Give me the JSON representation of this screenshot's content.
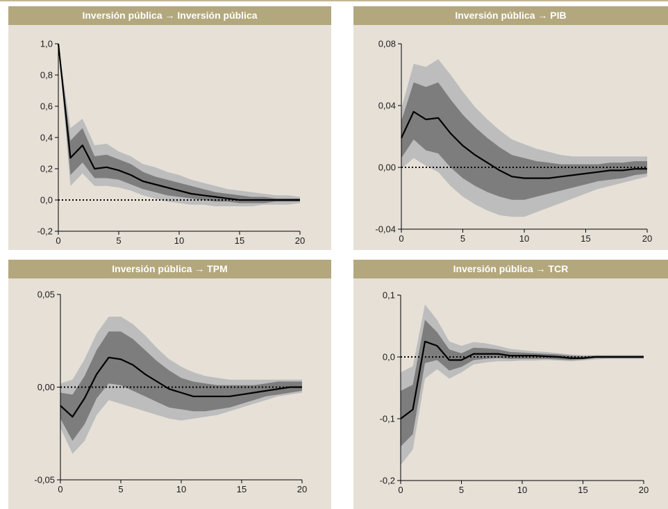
{
  "colors": {
    "header_bg": "#b3a77d",
    "panel_bg": "#e6e0d7",
    "band_outer": "#bdbdbd",
    "band_inner": "#7d7d7d",
    "line": "#000000"
  },
  "chart_data": [
    {
      "type": "line",
      "title": "Inversión pública → Inversión pública",
      "x": [
        0,
        1,
        2,
        3,
        4,
        5,
        6,
        7,
        8,
        9,
        10,
        11,
        12,
        13,
        14,
        15,
        16,
        17,
        18,
        19,
        20
      ],
      "xticks": [
        0,
        5,
        10,
        15,
        20
      ],
      "xtick_labels": [
        "0",
        "5",
        "10",
        "15",
        "20"
      ],
      "ylim": [
        -0.2,
        1.0
      ],
      "yticks": [
        -0.2,
        0.0,
        0.2,
        0.4,
        0.6,
        0.8,
        1.0
      ],
      "ytick_labels": [
        "-0,2",
        "0,0",
        "0,2",
        "0,4",
        "0,6",
        "0,8",
        "1,0"
      ],
      "zero_line": "dotted",
      "series": [
        {
          "role": "point_estimate",
          "values": [
            1.0,
            0.27,
            0.35,
            0.2,
            0.21,
            0.19,
            0.16,
            0.12,
            0.1,
            0.08,
            0.06,
            0.04,
            0.03,
            0.02,
            0.01,
            0.0,
            0.0,
            0.0,
            0.0,
            0.0,
            0.0
          ]
        },
        {
          "role": "inner_band_lower",
          "values": [
            1.0,
            0.16,
            0.24,
            0.14,
            0.14,
            0.13,
            0.1,
            0.07,
            0.05,
            0.03,
            0.02,
            0.01,
            0.0,
            -0.01,
            -0.01,
            -0.02,
            -0.02,
            -0.02,
            -0.01,
            -0.01,
            -0.01
          ]
        },
        {
          "role": "inner_band_upper",
          "values": [
            1.0,
            0.38,
            0.46,
            0.28,
            0.29,
            0.26,
            0.23,
            0.18,
            0.15,
            0.13,
            0.11,
            0.09,
            0.07,
            0.05,
            0.04,
            0.03,
            0.02,
            0.02,
            0.01,
            0.01,
            0.01
          ]
        },
        {
          "role": "outer_band_lower",
          "values": [
            1.0,
            0.09,
            0.17,
            0.09,
            0.09,
            0.08,
            0.06,
            0.03,
            0.01,
            -0.01,
            -0.02,
            -0.03,
            -0.03,
            -0.04,
            -0.04,
            -0.04,
            -0.04,
            -0.03,
            -0.03,
            -0.03,
            -0.02
          ]
        },
        {
          "role": "outer_band_upper",
          "values": [
            1.0,
            0.46,
            0.52,
            0.35,
            0.36,
            0.31,
            0.28,
            0.23,
            0.21,
            0.18,
            0.16,
            0.13,
            0.11,
            0.09,
            0.07,
            0.06,
            0.05,
            0.04,
            0.03,
            0.03,
            0.02
          ]
        }
      ]
    },
    {
      "type": "line",
      "title": "Inversión pública → PIB",
      "x": [
        0,
        1,
        2,
        3,
        4,
        5,
        6,
        7,
        8,
        9,
        10,
        11,
        12,
        13,
        14,
        15,
        16,
        17,
        18,
        19,
        20
      ],
      "xticks": [
        0,
        5,
        10,
        15,
        20
      ],
      "xtick_labels": [
        "0",
        "5",
        "10",
        "15",
        "20"
      ],
      "ylim": [
        -0.04,
        0.08
      ],
      "yticks": [
        -0.04,
        0.0,
        0.04,
        0.08
      ],
      "ytick_labels": [
        "-0,04",
        "0,00",
        "0,04",
        "0,08"
      ],
      "zero_line": "dotted",
      "series": [
        {
          "role": "point_estimate",
          "values": [
            0.019,
            0.036,
            0.031,
            0.032,
            0.022,
            0.014,
            0.008,
            0.003,
            -0.002,
            -0.006,
            -0.007,
            -0.007,
            -0.007,
            -0.006,
            -0.005,
            -0.004,
            -0.003,
            -0.002,
            -0.002,
            -0.001,
            -0.001
          ]
        },
        {
          "role": "inner_band_lower",
          "values": [
            0.006,
            0.018,
            0.011,
            0.009,
            0.0,
            -0.007,
            -0.012,
            -0.016,
            -0.019,
            -0.021,
            -0.021,
            -0.019,
            -0.017,
            -0.015,
            -0.013,
            -0.011,
            -0.009,
            -0.008,
            -0.007,
            -0.005,
            -0.004
          ]
        },
        {
          "role": "inner_band_upper",
          "values": [
            0.03,
            0.055,
            0.052,
            0.055,
            0.044,
            0.034,
            0.026,
            0.019,
            0.013,
            0.008,
            0.006,
            0.004,
            0.003,
            0.002,
            0.002,
            0.002,
            0.002,
            0.003,
            0.003,
            0.004,
            0.004
          ]
        },
        {
          "role": "outer_band_lower",
          "values": [
            -0.001,
            0.006,
            0.001,
            -0.003,
            -0.012,
            -0.019,
            -0.024,
            -0.028,
            -0.031,
            -0.032,
            -0.032,
            -0.029,
            -0.026,
            -0.023,
            -0.02,
            -0.017,
            -0.014,
            -0.012,
            -0.01,
            -0.008,
            -0.006
          ]
        },
        {
          "role": "outer_band_upper",
          "values": [
            0.038,
            0.067,
            0.065,
            0.07,
            0.06,
            0.049,
            0.039,
            0.031,
            0.024,
            0.018,
            0.015,
            0.012,
            0.01,
            0.008,
            0.007,
            0.007,
            0.007,
            0.007,
            0.007,
            0.007,
            0.007
          ]
        }
      ]
    },
    {
      "type": "line",
      "title": "Inversión pública → TPM",
      "x": [
        0,
        1,
        2,
        3,
        4,
        5,
        6,
        7,
        8,
        9,
        10,
        11,
        12,
        13,
        14,
        15,
        16,
        17,
        18,
        19,
        20
      ],
      "xticks": [
        0,
        5,
        10,
        15,
        20
      ],
      "xtick_labels": [
        "0",
        "5",
        "10",
        "15",
        "20"
      ],
      "ylim": [
        -0.05,
        0.05
      ],
      "yticks": [
        -0.05,
        0.0,
        0.05
      ],
      "ytick_labels": [
        "-0,05",
        "0,00",
        "0,05"
      ],
      "zero_line": "dotted",
      "series": [
        {
          "role": "point_estimate",
          "values": [
            -0.01,
            -0.016,
            -0.006,
            0.007,
            0.016,
            0.015,
            0.012,
            0.007,
            0.003,
            -0.001,
            -0.003,
            -0.005,
            -0.005,
            -0.005,
            -0.005,
            -0.004,
            -0.003,
            -0.002,
            -0.001,
            0.0,
            0.0
          ]
        },
        {
          "role": "inner_band_lower",
          "values": [
            -0.017,
            -0.029,
            -0.02,
            -0.006,
            0.002,
            0.001,
            -0.002,
            -0.005,
            -0.008,
            -0.011,
            -0.012,
            -0.013,
            -0.013,
            -0.012,
            -0.011,
            -0.009,
            -0.007,
            -0.005,
            -0.004,
            -0.003,
            -0.002
          ]
        },
        {
          "role": "inner_band_upper",
          "values": [
            -0.003,
            -0.004,
            0.006,
            0.02,
            0.03,
            0.03,
            0.026,
            0.02,
            0.014,
            0.009,
            0.005,
            0.003,
            0.002,
            0.001,
            0.001,
            0.001,
            0.001,
            0.002,
            0.003,
            0.003,
            0.003
          ]
        },
        {
          "role": "outer_band_lower",
          "values": [
            -0.022,
            -0.036,
            -0.029,
            -0.015,
            -0.007,
            -0.009,
            -0.011,
            -0.013,
            -0.015,
            -0.017,
            -0.018,
            -0.017,
            -0.016,
            -0.015,
            -0.013,
            -0.011,
            -0.009,
            -0.007,
            -0.005,
            -0.004,
            -0.003
          ]
        },
        {
          "role": "outer_band_upper",
          "values": [
            0.002,
            0.004,
            0.015,
            0.029,
            0.038,
            0.038,
            0.034,
            0.028,
            0.021,
            0.015,
            0.011,
            0.008,
            0.006,
            0.005,
            0.004,
            0.004,
            0.004,
            0.004,
            0.004,
            0.004,
            0.004
          ]
        }
      ]
    },
    {
      "type": "line",
      "title": "Inversión pública → TCR",
      "x": [
        0,
        1,
        2,
        3,
        4,
        5,
        6,
        7,
        8,
        9,
        10,
        11,
        12,
        13,
        14,
        15,
        16,
        17,
        18,
        19,
        20
      ],
      "xticks": [
        0,
        5,
        10,
        15,
        20
      ],
      "xtick_labels": [
        "0",
        "5",
        "10",
        "15",
        "20"
      ],
      "ylim": [
        -0.2,
        0.1
      ],
      "yticks": [
        -0.2,
        -0.1,
        0.0,
        0.1
      ],
      "ytick_labels": [
        "-0,2",
        "-0,1",
        "0,0",
        "0,1"
      ],
      "zero_line": "dotted",
      "series": [
        {
          "role": "point_estimate",
          "values": [
            -0.1,
            -0.085,
            0.025,
            0.018,
            -0.005,
            -0.005,
            0.005,
            0.005,
            0.005,
            0.002,
            0.002,
            0.002,
            0.001,
            0.0,
            -0.002,
            -0.002,
            0.0,
            0.0,
            0.0,
            0.0,
            0.0
          ]
        },
        {
          "role": "inner_band_lower",
          "values": [
            -0.145,
            -0.125,
            -0.01,
            -0.005,
            -0.022,
            -0.016,
            -0.005,
            -0.003,
            -0.002,
            -0.003,
            -0.003,
            -0.003,
            -0.003,
            -0.004,
            -0.005,
            -0.004,
            -0.002,
            -0.002,
            -0.002,
            -0.002,
            -0.002
          ]
        },
        {
          "role": "inner_band_upper",
          "values": [
            -0.055,
            -0.045,
            0.06,
            0.04,
            0.012,
            0.006,
            0.015,
            0.014,
            0.012,
            0.008,
            0.007,
            0.006,
            0.005,
            0.004,
            0.002,
            0.001,
            0.002,
            0.002,
            0.002,
            0.002,
            0.002
          ]
        },
        {
          "role": "outer_band_lower",
          "values": [
            -0.175,
            -0.15,
            -0.035,
            -0.02,
            -0.035,
            -0.025,
            -0.012,
            -0.009,
            -0.007,
            -0.007,
            -0.006,
            -0.006,
            -0.005,
            -0.006,
            -0.007,
            -0.006,
            -0.004,
            -0.003,
            -0.003,
            -0.003,
            -0.003
          ]
        },
        {
          "role": "outer_band_upper",
          "values": [
            -0.025,
            -0.015,
            0.085,
            0.06,
            0.025,
            0.018,
            0.024,
            0.022,
            0.018,
            0.013,
            0.011,
            0.009,
            0.008,
            0.006,
            0.004,
            0.003,
            0.003,
            0.003,
            0.003,
            0.003,
            0.003
          ]
        }
      ]
    }
  ]
}
